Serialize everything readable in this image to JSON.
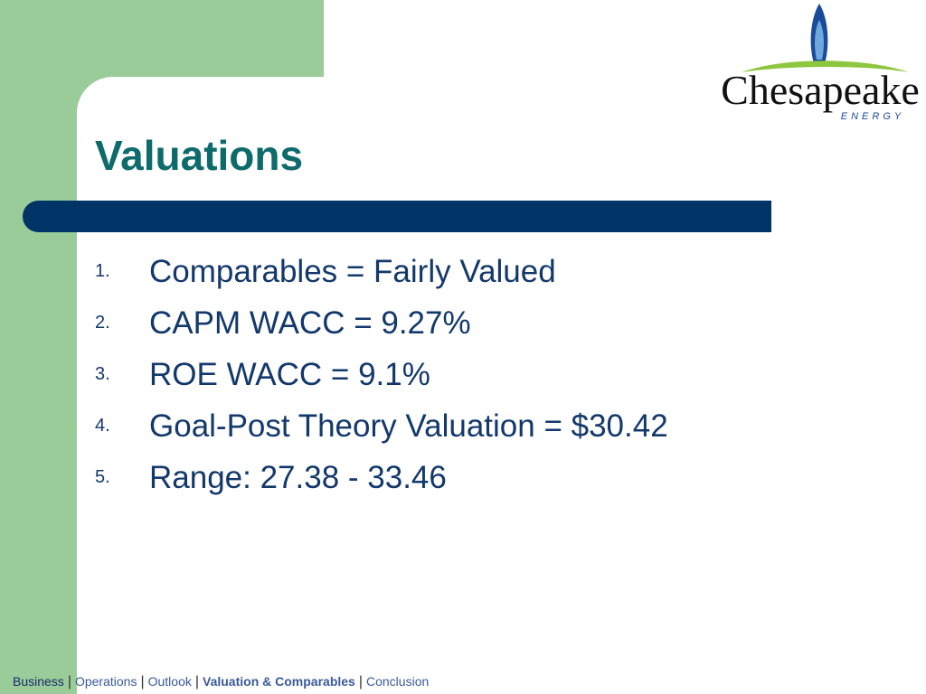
{
  "logo": {
    "name": "Chesapeake",
    "tagline": "ENERGY"
  },
  "title": "Valuations",
  "list": [
    {
      "marker": "1.",
      "text": "Comparables = Fairly Valued"
    },
    {
      "marker": "2.",
      "text": "CAPM WACC = 9.27%"
    },
    {
      "marker": "3.",
      "text": "ROE WACC = 9.1%"
    },
    {
      "marker": "4.",
      "text": "Goal-Post Theory Valuation = $30.42"
    },
    {
      "marker": "5.",
      "text": "Range: 27.38 - 33.46"
    }
  ],
  "footer": {
    "separator": "|",
    "items": [
      "Business",
      "Operations",
      "Outlook",
      "Valuation & Comparables",
      "Conclusion"
    ]
  }
}
